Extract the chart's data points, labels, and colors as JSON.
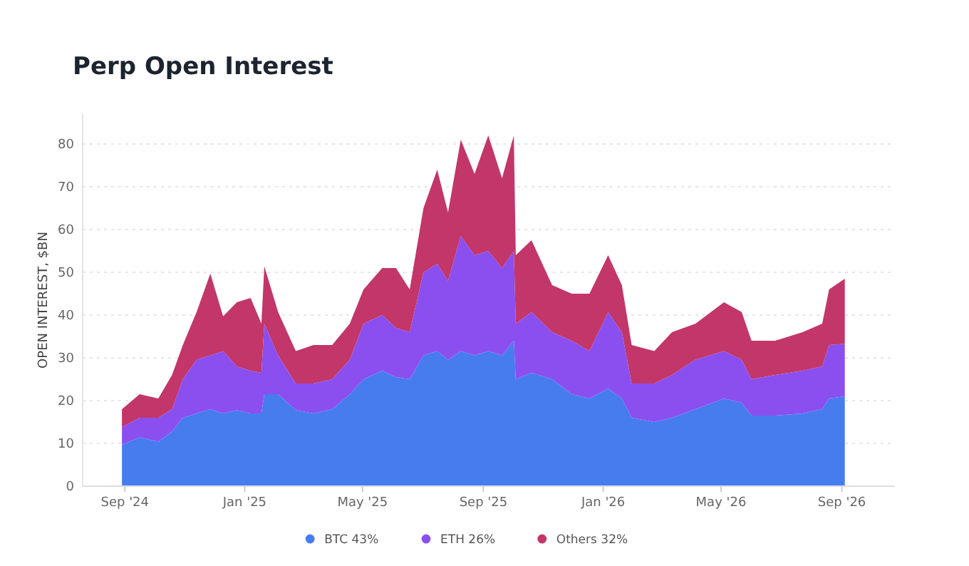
{
  "chart_data": {
    "type": "area",
    "stacked": true,
    "title": "Perp Open Interest",
    "ylabel": "OPEN INTEREST, $BN",
    "x": [
      "2024-08-29",
      "2024-09-16",
      "2024-10-05",
      "2024-10-19",
      "2024-10-30",
      "2024-11-13",
      "2024-11-27",
      "2024-12-10",
      "2024-12-24",
      "2025-01-07",
      "2025-01-18",
      "2025-01-21",
      "2025-02-04",
      "2025-02-22",
      "2025-03-12",
      "2025-03-31",
      "2025-04-18",
      "2025-05-02",
      "2025-05-21",
      "2025-06-04",
      "2025-06-18",
      "2025-07-02",
      "2025-07-16",
      "2025-07-27",
      "2025-08-09",
      "2025-08-23",
      "2025-09-06",
      "2025-09-20",
      "2025-10-02",
      "2025-10-04",
      "2025-10-20",
      "2025-11-10",
      "2025-11-30",
      "2025-12-18",
      "2026-01-06",
      "2026-01-20",
      "2026-01-30",
      "2026-02-22",
      "2026-03-12",
      "2026-04-05",
      "2026-05-04",
      "2026-05-22",
      "2026-06-01",
      "2026-06-25",
      "2026-07-23",
      "2026-08-12",
      "2026-08-19",
      "2026-09-04"
    ],
    "series": [
      {
        "name": "BTC 43%",
        "color": "#477cef",
        "values": [
          9.7,
          11.4,
          10.4,
          12.8,
          16,
          17,
          18,
          17,
          17.8,
          17,
          17,
          21.5,
          21.5,
          17.8,
          17,
          18,
          21.5,
          25,
          27,
          25.5,
          25,
          30.6,
          31.6,
          29.5,
          31.6,
          30.6,
          31.6,
          30.6,
          34,
          25,
          26.5,
          25,
          21.5,
          20.5,
          22.8,
          20.5,
          16,
          15,
          16,
          18,
          20.5,
          19.5,
          16.5,
          16.5,
          17,
          18,
          20.5,
          21
        ]
      },
      {
        "name": "ETH 26%",
        "color": "#8b4ff0",
        "values": [
          4.1,
          4.6,
          5.6,
          5.2,
          9,
          12.6,
          12.6,
          14.6,
          10.2,
          10,
          9.5,
          16.5,
          9.1,
          6.2,
          7,
          7,
          8.1,
          13,
          13,
          11.5,
          11,
          19.4,
          20.4,
          18.5,
          26.9,
          23.4,
          23.4,
          20.4,
          21,
          13,
          14.2,
          11,
          12.5,
          11.1,
          17.9,
          15.5,
          8,
          9,
          10,
          11.6,
          11.1,
          10.1,
          8.5,
          9.5,
          10,
          10,
          12.5,
          12.3
        ]
      },
      {
        "name": "Others 32%",
        "color": "#c2366a",
        "values": [
          4.2,
          5.5,
          4.5,
          8,
          8,
          11.1,
          19.1,
          8.1,
          15,
          17,
          11.5,
          13.4,
          10.1,
          7.6,
          9,
          8,
          8.4,
          8,
          11,
          14,
          10,
          15,
          22,
          16,
          22.5,
          19,
          27,
          21,
          27,
          16,
          16.8,
          11,
          11,
          13.4,
          13.3,
          11,
          9,
          7.6,
          10,
          8.4,
          11.4,
          11.1,
          9,
          8,
          9,
          10,
          13,
          15.2
        ]
      }
    ],
    "xlim": [
      "2024-07-20",
      "2026-10-25"
    ],
    "xticks": [
      {
        "value": "2024-09-01",
        "label": "Sep '24"
      },
      {
        "value": "2025-01-01",
        "label": "Jan '25"
      },
      {
        "value": "2025-05-01",
        "label": "May '25"
      },
      {
        "value": "2025-09-01",
        "label": "Sep '25"
      },
      {
        "value": "2026-01-01",
        "label": "Jan '26"
      },
      {
        "value": "2026-05-01",
        "label": "May '26"
      },
      {
        "value": "2026-09-01",
        "label": "Sep '26"
      }
    ],
    "ylim": [
      0,
      87
    ],
    "yticks": [
      0,
      10,
      20,
      30,
      40,
      50,
      60,
      70,
      80
    ],
    "grid": "y",
    "legend": "bottom"
  }
}
